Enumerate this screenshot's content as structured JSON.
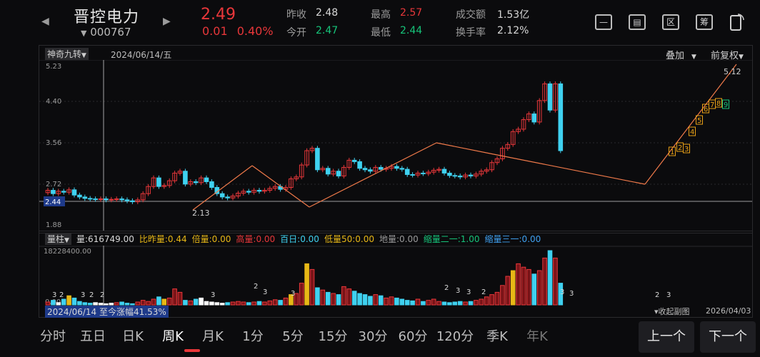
{
  "header": {
    "stock_name": "晋控电力",
    "stock_code": "000767",
    "price": "2.49",
    "change": "0.01",
    "change_pct": "0.40%",
    "stats": [
      {
        "label": "昨收",
        "value": "2.48",
        "color": "#d8d8d8"
      },
      {
        "label": "今开",
        "value": "2.47",
        "color": "#16c47a"
      },
      {
        "label": "最高",
        "value": "2.57",
        "color": "#e8373a"
      },
      {
        "label": "最低",
        "value": "2.44",
        "color": "#16c47a"
      },
      {
        "label": "成交额",
        "value": "1.53亿",
        "color": "#d8d8d8"
      },
      {
        "label": "换手率",
        "value": "2.12%",
        "color": "#d8d8d8"
      }
    ],
    "icons": [
      "minus-icon",
      "screen-icon",
      "region-icon",
      "chip-icon",
      "rotate-icon"
    ],
    "icon_glyphs": {
      "minus": "—",
      "screen": "▤",
      "region": "区",
      "chip": "筹"
    }
  },
  "chart_toolbar": {
    "indicator": "神奇九转",
    "date": "2024/06/14/五",
    "overlay": "叠加",
    "adjust": "前复权"
  },
  "price_axis": [
    "5.23",
    "4.40",
    "3.56",
    "2.72",
    "1.88"
  ],
  "cursor_price": "2.44",
  "annotations": {
    "high": "5.12",
    "low": "2.13"
  },
  "volume_toolbar": {
    "name": "量柱",
    "items": [
      {
        "text": "量:616749.00",
        "color": "#d8d8d8"
      },
      {
        "text": "比昨量:0.44",
        "color": "#e8b816"
      },
      {
        "text": "倍量:0.00",
        "color": "#e8b816"
      },
      {
        "text": "高量:0.00",
        "color": "#e8373a"
      },
      {
        "text": "百日:0.00",
        "color": "#3fd1f0"
      },
      {
        "text": "低量50:0.00",
        "color": "#e8b816"
      },
      {
        "text": "地量:0.00",
        "color": "#9a9a9a"
      },
      {
        "text": "缩量二一:1.00",
        "color": "#16c47a"
      },
      {
        "text": "缩量三一:0.00",
        "color": "#3fa0f0"
      }
    ]
  },
  "volume_axis_top": "18228400.00",
  "volume_axis_bottom": "0.00",
  "footer": {
    "range_info": "2024/06/14 至今涨幅41.53%",
    "collapse": "收起副图",
    "end_date": "2026/04/03"
  },
  "bottom_tabs": [
    "分时",
    "五日",
    "日K",
    "周K",
    "月K",
    "1分",
    "5分",
    "15分",
    "30分",
    "60分",
    "120分",
    "季K",
    "年K"
  ],
  "active_tab": "周K",
  "nav": {
    "prev": "上一个",
    "next": "下一个"
  },
  "chart_data": {
    "type": "candlestick",
    "ylim": [
      1.88,
      5.23
    ],
    "nine_turn_labels": [
      "1",
      "2",
      "3",
      "4",
      "5",
      "6",
      "7",
      "8",
      "9"
    ],
    "volume_markers": [
      "3",
      "2",
      "3",
      "2",
      "2",
      "3",
      "2",
      "3",
      "3",
      "2",
      "3",
      "3",
      "2",
      "3",
      "3",
      "2",
      "3"
    ],
    "colors": {
      "up": "#e8373a",
      "down": "#3fd1f0",
      "bull_vol": "#e8b816",
      "flat": "#ffffff",
      "trend": "#f07a4a"
    }
  }
}
